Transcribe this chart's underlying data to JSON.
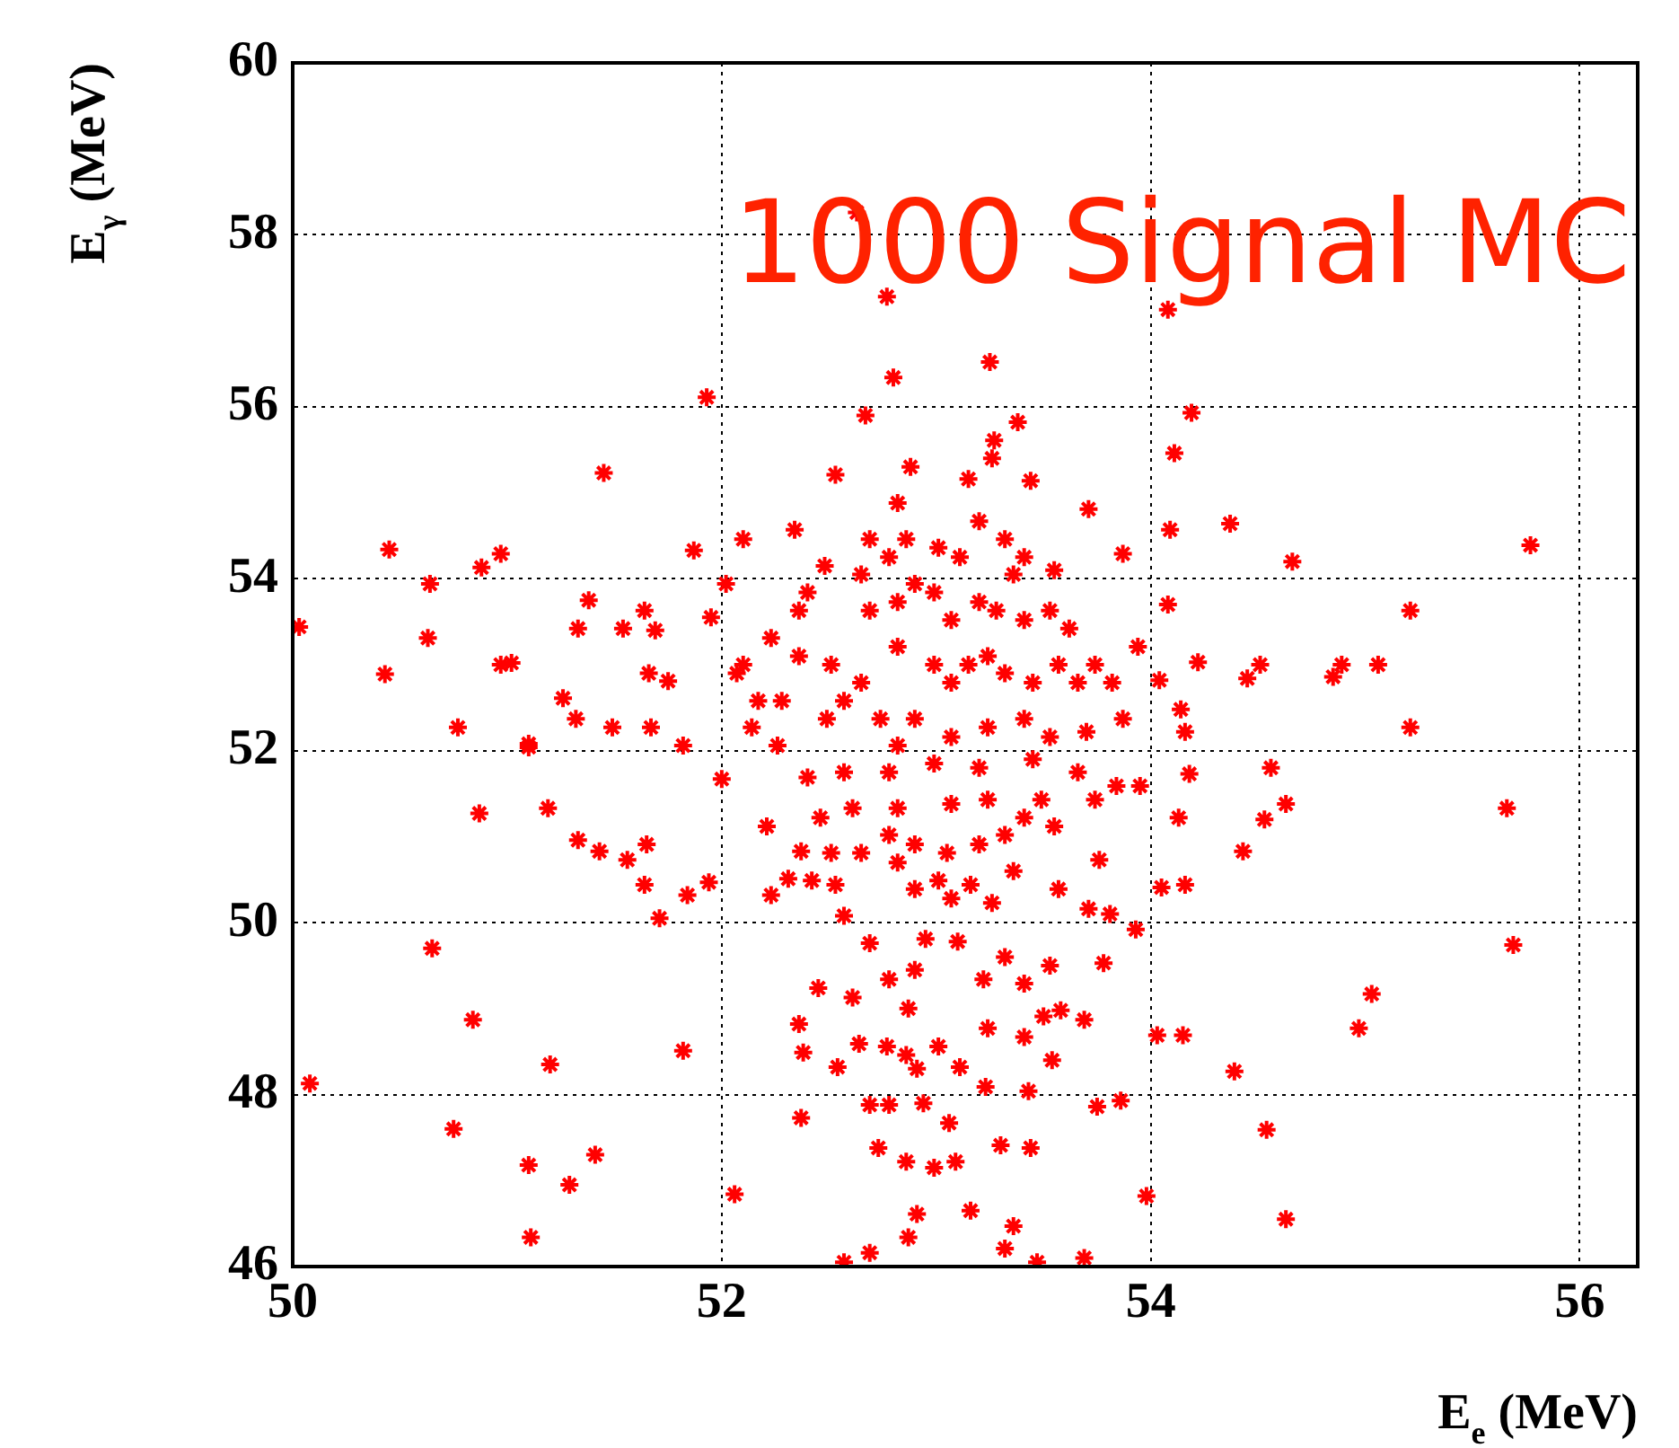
{
  "chart_data": {
    "type": "scatter",
    "xlabel": "E$_{e}$ (MeV)",
    "ylabel": "E$_{γ}$ (MeV)",
    "annotations": [
      "1000 Signal MC"
    ],
    "xlim": [
      50,
      56.27
    ],
    "ylim": [
      46,
      60
    ],
    "xticks": [
      50,
      52,
      54,
      56
    ],
    "yticks": [
      46,
      48,
      50,
      52,
      54,
      56,
      58,
      60
    ],
    "grid": true,
    "legend": false,
    "marker": "cross",
    "series": [
      {
        "color": "#ff0000",
        "x": [
          50.03,
          50.08,
          50.45,
          50.43,
          50.64,
          50.63,
          50.65,
          50.77,
          50.87,
          50.97,
          50.88,
          50.84,
          50.75,
          51.1,
          51.11,
          51.29,
          51.41,
          51.2,
          51.1,
          51.19,
          51.33,
          51.43,
          51.56,
          51.65,
          51.64,
          51.71,
          51.84,
          51.94,
          51.82,
          50.97,
          51.02,
          51.33,
          51.38,
          51.54,
          51.64,
          51.69,
          51.66,
          51.75,
          51.49,
          51.67,
          51.26,
          51.32,
          51.1,
          51.45,
          51.93,
          51.87,
          51.95,
          52.02,
          51.82,
          52.0,
          52.06,
          52.63,
          52.77,
          52.8,
          53.25,
          54.08,
          52.67,
          54.19,
          54.11,
          53.38,
          53.27,
          53.26,
          52.88,
          52.53,
          53.15,
          53.44,
          53.71,
          54.37,
          54.09,
          54.66,
          55.77,
          53.87,
          52.34,
          52.1,
          53.55,
          54.08,
          55.21,
          54.22,
          54.51,
          54.45,
          54.89,
          54.85,
          55.06,
          55.21,
          54.16,
          53.94,
          54.04,
          54.14,
          54.56,
          54.63,
          54.53,
          54.43,
          55.66,
          54.13,
          54.18,
          54.05,
          54.16,
          55.69,
          55.03,
          54.97,
          54.39,
          54.54,
          54.63,
          54.03,
          54.15,
          53.98,
          53.93,
          53.76,
          53.81,
          53.71,
          53.78,
          53.86,
          53.75,
          53.69,
          53.58,
          53.54,
          53.69,
          53.47,
          53.36,
          53.32,
          53.44,
          53.3,
          53.43,
          53.23,
          53.16,
          53.06,
          53.09,
          52.99,
          52.86,
          52.73,
          52.69,
          52.78,
          52.94,
          52.91,
          52.87,
          52.69,
          52.57,
          52.37,
          52.54,
          52.38,
          52.36,
          52.64,
          52.77,
          52.86,
          52.91,
          53.01,
          53.11,
          53.24,
          53.41,
          53.5,
          53.22,
          53.32,
          53.41,
          53.53,
          53.1,
          52.9,
          52.78,
          52.61,
          52.45,
          52.87,
          52.95,
          52.69,
          52.57,
          52.9,
          53.07,
          53.26,
          52.82,
          53.01,
          53.16,
          53.36,
          53.57,
          52.53,
          52.42,
          52.31,
          52.23,
          52.37,
          52.51,
          52.65,
          52.78,
          52.9,
          53.05,
          53.2,
          53.32,
          53.41,
          53.55,
          52.21,
          52.46,
          52.61,
          52.82,
          53.07,
          53.24,
          53.49,
          53.74,
          53.84,
          53.95,
          52.4,
          52.57,
          52.78,
          52.99,
          53.2,
          53.45,
          53.66,
          52.26,
          52.14,
          52.07,
          52.1,
          52.17,
          52.28,
          52.23,
          52.36,
          52.36,
          52.4,
          52.48,
          52.51,
          52.57,
          52.65,
          52.69,
          52.78,
          52.86,
          52.82,
          53.01,
          53.11,
          53.2,
          53.32,
          53.41,
          53.36,
          52.69,
          52.82,
          52.9,
          52.99,
          53.07,
          53.2,
          53.28,
          53.41,
          53.53,
          53.62,
          53.57,
          53.66,
          53.74,
          53.82,
          53.87,
          52.82,
          52.99,
          53.07,
          53.15,
          53.24,
          53.32,
          53.45,
          52.65,
          52.74,
          52.9,
          53.07,
          53.24,
          53.41,
          53.53,
          53.7,
          52.49,
          52.82
        ],
        "values": [
          53.44,
          48.13,
          54.34,
          52.89,
          53.94,
          53.31,
          49.7,
          52.27,
          51.27,
          54.29,
          54.13,
          48.87,
          47.6,
          47.18,
          46.34,
          46.95,
          47.3,
          48.35,
          52.08,
          51.33,
          50.96,
          50.83,
          50.73,
          50.91,
          50.44,
          50.05,
          50.32,
          50.47,
          48.51,
          53.0,
          53.02,
          53.42,
          53.75,
          53.42,
          53.63,
          53.4,
          52.9,
          52.81,
          52.27,
          52.27,
          52.61,
          52.37,
          52.04,
          55.23,
          56.11,
          54.33,
          53.55,
          53.94,
          52.06,
          51.67,
          46.84,
          58.26,
          57.28,
          56.34,
          56.52,
          57.13,
          55.9,
          55.93,
          55.46,
          55.82,
          55.61,
          55.4,
          55.3,
          55.21,
          55.16,
          55.14,
          54.81,
          54.64,
          54.57,
          54.2,
          54.39,
          54.29,
          54.57,
          54.46,
          54.1,
          53.7,
          53.63,
          53.03,
          53.0,
          52.84,
          53.0,
          52.86,
          53.0,
          52.27,
          52.22,
          53.21,
          52.82,
          52.48,
          51.8,
          51.38,
          51.2,
          50.83,
          51.33,
          51.22,
          51.73,
          50.41,
          50.44,
          49.74,
          49.17,
          48.77,
          48.27,
          47.59,
          46.55,
          48.69,
          48.69,
          46.82,
          49.92,
          50.73,
          50.1,
          50.16,
          49.53,
          47.93,
          47.86,
          48.87,
          48.98,
          48.4,
          46.1,
          46.05,
          46.47,
          46.21,
          47.38,
          47.41,
          48.04,
          48.09,
          46.65,
          47.67,
          47.22,
          47.15,
          47.22,
          47.38,
          47.88,
          47.88,
          47.9,
          46.61,
          46.34,
          46.16,
          46.05,
          47.73,
          48.32,
          48.49,
          48.82,
          48.59,
          48.56,
          48.46,
          48.3,
          48.56,
          48.32,
          48.77,
          48.67,
          48.91,
          49.34,
          49.6,
          49.29,
          49.5,
          49.78,
          49.45,
          49.34,
          49.13,
          49.24,
          49.0,
          49.81,
          49.76,
          50.08,
          50.39,
          50.28,
          50.23,
          50.7,
          50.49,
          50.44,
          50.6,
          50.39,
          50.44,
          50.49,
          50.51,
          50.32,
          50.83,
          50.81,
          50.81,
          51.02,
          50.91,
          50.81,
          50.91,
          51.02,
          51.22,
          51.12,
          51.12,
          51.22,
          51.33,
          51.33,
          51.38,
          51.43,
          51.43,
          51.43,
          51.59,
          51.59,
          51.69,
          51.75,
          51.75,
          51.85,
          51.8,
          51.9,
          51.75,
          52.06,
          52.27,
          52.9,
          53.0,
          52.58,
          52.58,
          53.31,
          53.63,
          53.1,
          53.84,
          54.15,
          53.0,
          52.58,
          54.05,
          54.46,
          54.25,
          54.46,
          54.88,
          54.36,
          54.25,
          54.67,
          54.46,
          54.25,
          54.05,
          53.63,
          53.73,
          53.94,
          53.84,
          53.52,
          53.73,
          53.63,
          53.52,
          53.63,
          53.42,
          53.0,
          52.79,
          53.0,
          52.79,
          52.37,
          53.21,
          53.0,
          52.79,
          53.0,
          53.1,
          52.9,
          52.79,
          52.79,
          52.37,
          52.37,
          52.16,
          52.27,
          52.37,
          52.16,
          52.22,
          52.37,
          52.06
        ]
      }
    ]
  }
}
